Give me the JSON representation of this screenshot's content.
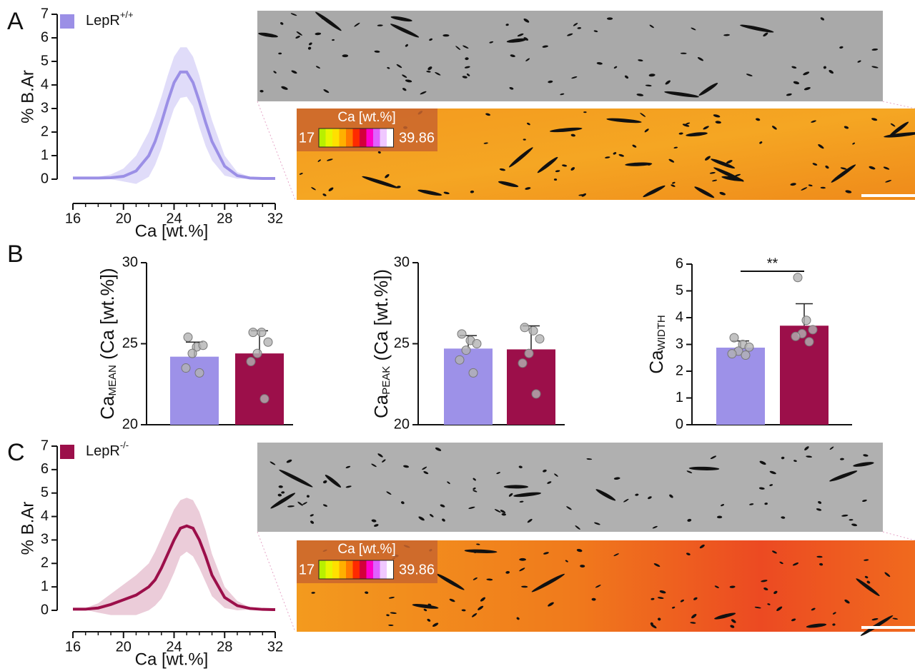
{
  "panel_labels": [
    "A",
    "B",
    "C"
  ],
  "images": [
    {
      "colorbar_title": "Ca [wt.%]",
      "colorbar_min": 17,
      "colorbar_max": 39.86
    },
    {
      "colorbar_title": "Ca [wt.%]",
      "colorbar_min": 17,
      "colorbar_max": 39.86
    }
  ],
  "chart_data": [
    {
      "type": "line",
      "xlabel": "Ca [wt.%]",
      "ylabel": "% B.Ar",
      "xlim": [
        16,
        32
      ],
      "xticks": [
        16,
        20,
        24,
        28,
        32
      ],
      "xminor": [
        17,
        18,
        19,
        21,
        22,
        23,
        25,
        26,
        27,
        29,
        30,
        31
      ],
      "ylim": [
        0,
        7
      ],
      "yticks": [
        0,
        1,
        2,
        3,
        4,
        5,
        6,
        7
      ],
      "x": [
        16,
        17,
        18,
        19,
        20,
        21,
        22,
        22.5,
        23,
        23.5,
        24,
        24.5,
        25,
        25.5,
        26,
        26.5,
        27,
        28,
        29,
        30,
        31,
        32
      ],
      "series": [
        {
          "name": "LepR",
          "name_sup": "+/+",
          "color": "#9b8fe6",
          "band_color": "#ddd8f8",
          "values": [
            0.05,
            0.05,
            0.05,
            0.06,
            0.12,
            0.35,
            1.0,
            1.6,
            2.4,
            3.3,
            4.1,
            4.55,
            4.55,
            4.1,
            3.3,
            2.4,
            1.6,
            0.55,
            0.15,
            0.05,
            0.03,
            0.03
          ],
          "upper": [
            0.06,
            0.07,
            0.1,
            0.2,
            0.45,
            1.0,
            2.0,
            2.7,
            3.5,
            4.4,
            5.2,
            5.6,
            5.6,
            5.2,
            4.4,
            3.4,
            2.5,
            1.0,
            0.3,
            0.1,
            0.04,
            0.03
          ],
          "lower": [
            0.04,
            0.04,
            0.02,
            0,
            -0.1,
            -0.2,
            0.1,
            0.6,
            1.3,
            2.2,
            3.0,
            3.45,
            3.5,
            3.1,
            2.2,
            1.4,
            0.8,
            0.15,
            0.02,
            0.02,
            0.02,
            0.02
          ]
        }
      ]
    },
    {
      "type": "bar",
      "ylabel": {
        "base": "Ca",
        "sub": "MEAN",
        "suffix": " (Ca [wt.%])"
      },
      "ylim": [
        20,
        30
      ],
      "yticks": [
        20,
        25,
        30
      ],
      "categories": [
        null,
        null
      ],
      "colors": [
        "#9d91e8",
        "#9c0f4a"
      ],
      "values": [
        24.2,
        24.4
      ],
      "errors": [
        0.9,
        1.4
      ],
      "points": [
        [
          25.4,
          24.8,
          24.9,
          24.4,
          23.5,
          23.2
        ],
        [
          25.7,
          25.7,
          25.1,
          24.4,
          23.9,
          21.6
        ]
      ]
    },
    {
      "type": "bar",
      "ylabel": {
        "base": "Ca",
        "sub": "PEAK",
        "suffix": " (Ca [wt.%])"
      },
      "ylim": [
        20,
        30
      ],
      "yticks": [
        20,
        25,
        30
      ],
      "categories": [
        null,
        null
      ],
      "colors": [
        "#9d91e8",
        "#9c0f4a"
      ],
      "values": [
        24.7,
        24.65
      ],
      "errors": [
        0.8,
        1.45
      ],
      "points": [
        [
          25.6,
          25.2,
          25.0,
          24.6,
          24.0,
          23.2
        ],
        [
          26.0,
          25.8,
          25.3,
          24.4,
          23.8,
          21.9
        ]
      ]
    },
    {
      "type": "bar",
      "ylabel": {
        "base": "Ca",
        "sub": "WIDTH"
      },
      "ylim": [
        0,
        6
      ],
      "yticks": [
        0,
        1,
        2,
        3,
        4,
        5,
        6
      ],
      "categories": [
        null,
        null
      ],
      "colors": [
        "#9d91e8",
        "#9c0f4a"
      ],
      "values": [
        2.88,
        3.7
      ],
      "errors": [
        0.25,
        0.82
      ],
      "points": [
        [
          3.25,
          3.0,
          2.9,
          2.75,
          2.65,
          2.6
        ],
        [
          5.5,
          3.9,
          3.55,
          3.4,
          3.3,
          3.1
        ]
      ],
      "significance": "**"
    },
    {
      "type": "line",
      "xlabel": "Ca [wt.%]",
      "ylabel": "% B.Ar",
      "xlim": [
        16,
        32
      ],
      "xticks": [
        16,
        20,
        24,
        28,
        32
      ],
      "xminor": [
        17,
        18,
        19,
        21,
        22,
        23,
        25,
        26,
        27,
        29,
        30,
        31
      ],
      "ylim": [
        0,
        7
      ],
      "yticks": [
        0,
        1,
        2,
        3,
        4,
        5,
        6,
        7
      ],
      "x": [
        16,
        17,
        18,
        19,
        20,
        21,
        22,
        22.5,
        23,
        23.5,
        24,
        24.5,
        25,
        25.5,
        26,
        26.5,
        27,
        28,
        29,
        30,
        31,
        32
      ],
      "series": [
        {
          "name": "LepR",
          "name_sup": "-/-",
          "color": "#9c0f4a",
          "band_color": "#e9c6d5",
          "values": [
            0.05,
            0.05,
            0.1,
            0.25,
            0.45,
            0.65,
            1.0,
            1.3,
            1.8,
            2.4,
            3.0,
            3.5,
            3.6,
            3.5,
            3.0,
            2.3,
            1.5,
            0.55,
            0.2,
            0.08,
            0.04,
            0.03
          ],
          "upper": [
            0.06,
            0.1,
            0.3,
            0.7,
            1.1,
            1.5,
            2.0,
            2.5,
            3.1,
            3.7,
            4.3,
            4.7,
            4.8,
            4.7,
            4.2,
            3.4,
            2.4,
            1.0,
            0.4,
            0.12,
            0.05,
            0.04
          ],
          "lower": [
            0.04,
            0.02,
            -0.1,
            -0.2,
            -0.2,
            -0.2,
            0,
            0.2,
            0.5,
            1.0,
            1.6,
            2.3,
            2.5,
            2.3,
            1.8,
            1.2,
            0.6,
            0.1,
            0,
            0.03,
            0.03,
            0.02
          ]
        }
      ]
    }
  ]
}
